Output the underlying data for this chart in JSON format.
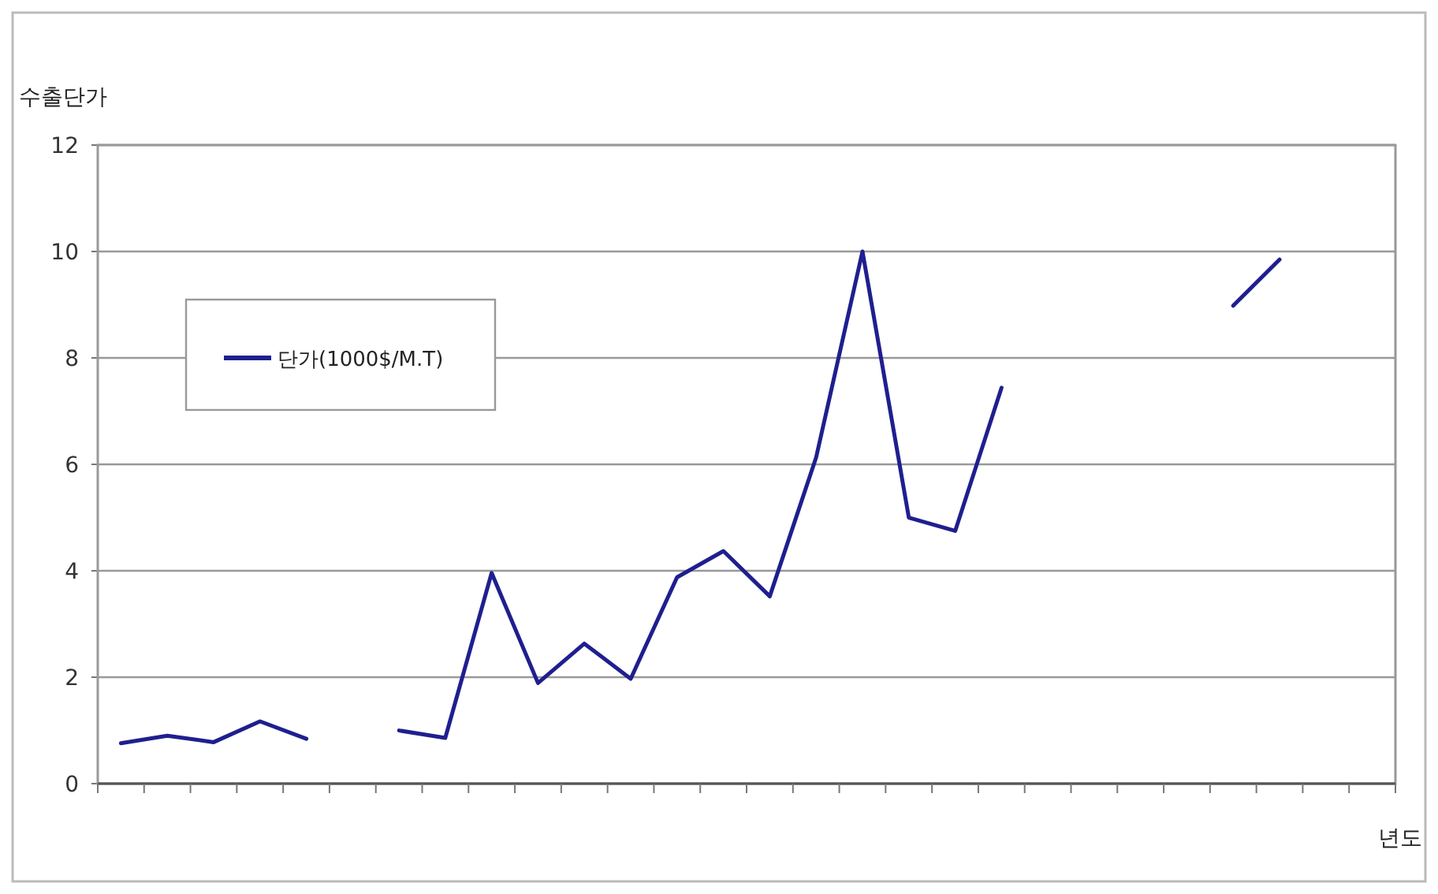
{
  "chart_data": {
    "type": "line",
    "xlabel": "년도",
    "ylabel": "수출단가",
    "categories": [
      null,
      null,
      null,
      null,
      null,
      null,
      null,
      null,
      null,
      null,
      null,
      null,
      null,
      null,
      null,
      null,
      null,
      null,
      null,
      null,
      null,
      null,
      null,
      null,
      null,
      null,
      null,
      null
    ],
    "series": [
      {
        "name": "단가(1000$/M.T)",
        "color": "#1f1f8f",
        "values": [
          0.76,
          0.9,
          0.78,
          1.17,
          0.84,
          null,
          1.0,
          0.86,
          3.96,
          1.89,
          2.63,
          1.97,
          3.88,
          4.37,
          3.52,
          6.13,
          10.0,
          5.0,
          4.75,
          7.44,
          null,
          null,
          null,
          null,
          8.98,
          9.85,
          null,
          null
        ]
      }
    ],
    "ylim": [
      0,
      12
    ],
    "yticks": [
      0,
      2,
      4,
      6,
      8,
      10,
      12
    ],
    "grid": "y",
    "legend": "top left"
  }
}
